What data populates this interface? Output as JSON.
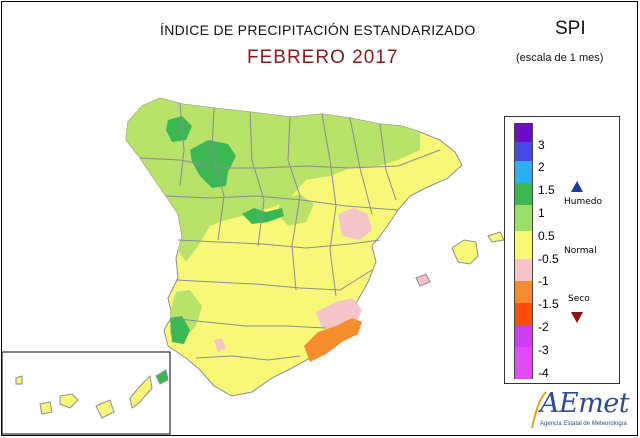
{
  "header": {
    "title": "ÍNDICE DE PRECIPITACIÓN ESTANDARIZADO",
    "period": "FEBRERO 2017",
    "index_name": "SPI",
    "scale_note": "(escala de 1 mes)"
  },
  "legend": {
    "ticks": [
      "3",
      "2",
      "1.5",
      "1",
      "0.5",
      "-0.5",
      "-1",
      "-1.5",
      "-2",
      "-3",
      "-4"
    ],
    "classes": [
      {
        "color": "#6a0dcc"
      },
      {
        "color": "#4747ea"
      },
      {
        "color": "#2ab0ee"
      },
      {
        "color": "#3cb754"
      },
      {
        "color": "#9bde69"
      },
      {
        "color": "#f8f878"
      },
      {
        "color": "#f4c5c8"
      },
      {
        "color": "#f58c2e"
      },
      {
        "color": "#ff4c0a"
      },
      {
        "color": "#cc3ef6"
      },
      {
        "color": "#df4cf7"
      }
    ],
    "wet_label": "Humedo",
    "normal_label": "Normal",
    "dry_label": "Seco",
    "wet_color": "#1c3e96",
    "dry_color": "#8b1212"
  },
  "map": {
    "colors": {
      "normal": "#f8f878",
      "light_green": "#b8e26a",
      "green": "#3cb754",
      "pink": "#f4c5c8",
      "orange": "#f58c2e",
      "border": "#8c8c96"
    }
  },
  "logo": {
    "word": "AEmet",
    "agency": "Agencia Estatal de Meteorología"
  }
}
